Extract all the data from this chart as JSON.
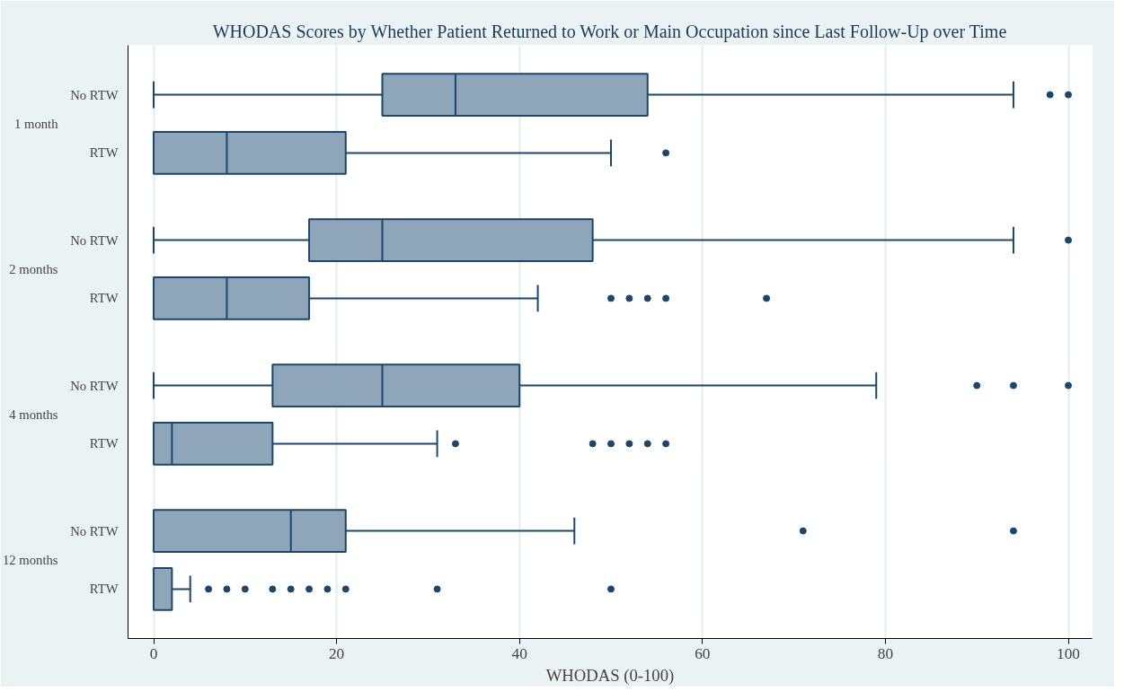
{
  "chart_data": {
    "type": "box",
    "orientation": "horizontal",
    "title": "WHODAS Scores by Whether Patient Returned to Work or Main Occupation since Last Follow-Up over Time",
    "xlabel": "WHODAS (0-100)",
    "categories": [
      "No RTW",
      "RTW",
      "No RTW",
      "RTW",
      "No RTW",
      "RTW",
      "No RTW",
      "RTW"
    ],
    "annotations": [
      "1 month",
      "2 months",
      "4 months",
      "12 months"
    ],
    "boxes": [
      {
        "low": 0,
        "q1": 25,
        "median": 33,
        "q3": 54,
        "high": 94,
        "outliers": [
          98,
          100
        ]
      },
      {
        "low": 0,
        "q1": 0,
        "median": 8,
        "q3": 21,
        "high": 50,
        "outliers": [
          56
        ]
      },
      {
        "low": 0,
        "q1": 17,
        "median": 25,
        "q3": 48,
        "high": 94,
        "outliers": [
          100
        ]
      },
      {
        "low": 0,
        "q1": 0,
        "median": 8,
        "q3": 17,
        "high": 42,
        "outliers": [
          50,
          52,
          54,
          56,
          67
        ]
      },
      {
        "low": 0,
        "q1": 13,
        "median": 25,
        "q3": 40,
        "high": 79,
        "outliers": [
          90,
          94,
          100
        ]
      },
      {
        "low": 0,
        "q1": 0,
        "median": 2,
        "q3": 13,
        "high": 31,
        "outliers": [
          33,
          48,
          50,
          52,
          54,
          56
        ]
      },
      {
        "low": 0,
        "q1": 0,
        "median": 15,
        "q3": 21,
        "high": 46,
        "outliers": [
          71,
          94
        ]
      },
      {
        "low": 0,
        "q1": 0,
        "median": 0,
        "q3": 2,
        "high": 4,
        "outliers": [
          6,
          8,
          10,
          13,
          15,
          17,
          19,
          21,
          31,
          50
        ]
      }
    ],
    "color": "#8fa5ba",
    "xlim": [
      -2.8,
      102.6
    ],
    "xticks": [
      0,
      20,
      40,
      60,
      80,
      100
    ],
    "grid": "x"
  }
}
